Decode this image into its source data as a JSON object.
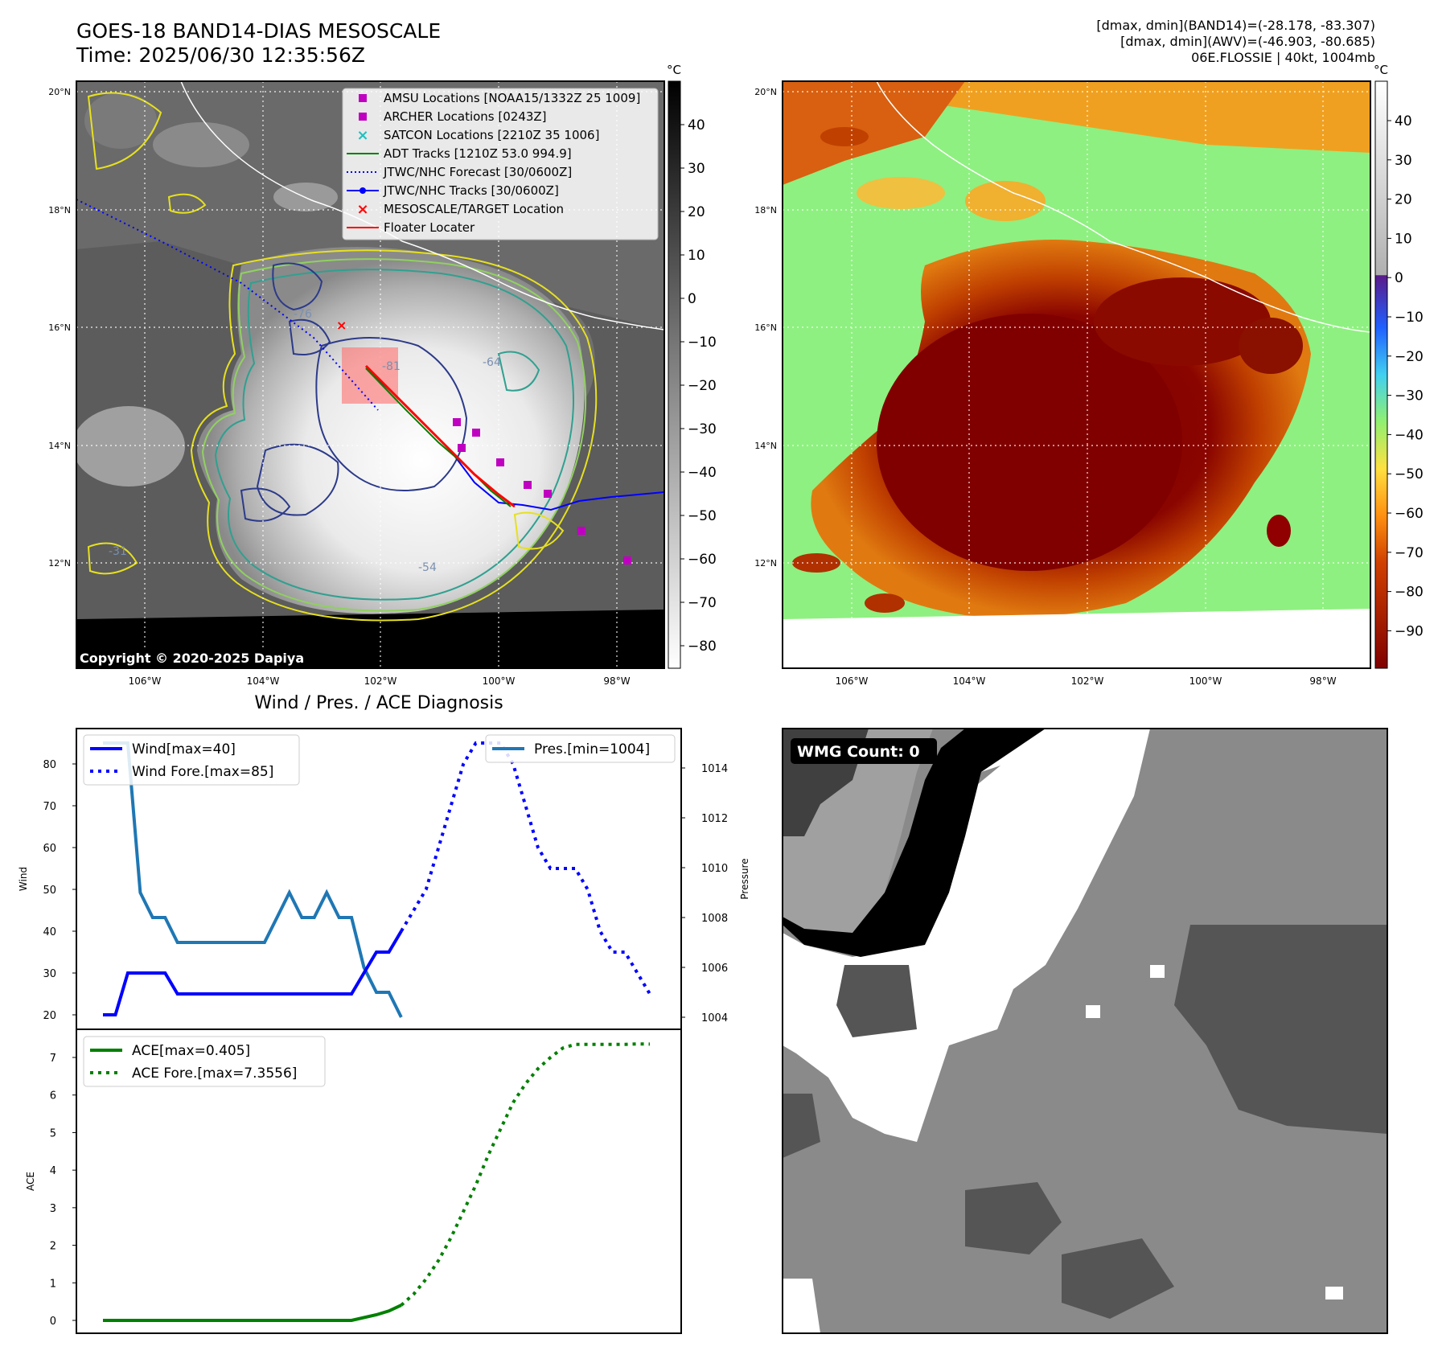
{
  "header": {
    "title_line1": "GOES-18 BAND14-DIAS MESOSCALE",
    "title_line2": "Time: 2025/06/30 12:35:56Z",
    "stats_line1": "[dmax, dmin](BAND14)=(-28.178, -83.307)",
    "stats_line2": "[dmax, dmin](AWV)=(-46.903, -80.685)",
    "stats_line3": "06E.FLOSSIE | 40kt, 1004mb"
  },
  "maps": {
    "lat_ticks": [
      "20°N",
      "18°N",
      "16°N",
      "14°N",
      "12°N"
    ],
    "lon_ticks": [
      "106°W",
      "104°W",
      "102°W",
      "100°W",
      "98°W"
    ],
    "colorbar_unit": "°C",
    "colorbar1_ticks": [
      "40",
      "30",
      "20",
      "10",
      "0",
      "−10",
      "−20",
      "−30",
      "−40",
      "−50",
      "−60",
      "−70",
      "−80"
    ],
    "colorbar2_ticks": [
      "40",
      "30",
      "20",
      "10",
      "0",
      "−10",
      "−20",
      "−30",
      "−40",
      "−50",
      "−60",
      "−70",
      "−80",
      "−90"
    ],
    "copyright": "Copyright © 2020-2025 Dapiya",
    "contour_labels": [
      "-31",
      "-54",
      "-64",
      "-76",
      "-81"
    ],
    "legend": [
      {
        "label": "AMSU Locations [NOAA15/1332Z 25 1009]",
        "marker": "square",
        "color": "#c000c0"
      },
      {
        "label": "ARCHER Locations [0243Z]",
        "marker": "square",
        "color": "#c000c0"
      },
      {
        "label": "SATCON Locations [2210Z 35 1006]",
        "marker": "x",
        "color": "#20c0c0"
      },
      {
        "label": "ADT Tracks [1210Z 53.0 994.9]",
        "marker": "line",
        "color": "#008000"
      },
      {
        "label": "JTWC/NHC Forecast [30/0600Z]",
        "marker": "dotted",
        "color": "#0000ff"
      },
      {
        "label": "JTWC/NHC Tracks [30/0600Z]",
        "marker": "line-dot",
        "color": "#0000ff"
      },
      {
        "label": "MESOSCALE/TARGET Location",
        "marker": "x",
        "color": "#ff0000"
      },
      {
        "label": "Floater Locater",
        "marker": "line",
        "color": "#ff0000"
      }
    ]
  },
  "diagnosis": {
    "title": "Wind / Pres. / ACE Diagnosis",
    "wind_ylabel": "Wind",
    "pres_ylabel": "Pressure",
    "ace_ylabel": "ACE",
    "legend_wind": "Wind[max=40]",
    "legend_wind_fore": "Wind Fore.[max=85]",
    "legend_pres": "Pres.[min=1004]",
    "legend_ace": "ACE[max=0.405]",
    "legend_ace_fore": "ACE Fore.[max=7.3556]",
    "wind_ticks": [
      "80",
      "70",
      "60",
      "50",
      "40",
      "30",
      "20"
    ],
    "pres_ticks": [
      "1014",
      "1012",
      "1010",
      "1008",
      "1006",
      "1004"
    ],
    "ace_ticks": [
      "7",
      "6",
      "5",
      "4",
      "3",
      "2",
      "1",
      "0"
    ]
  },
  "wmg": {
    "label": "WMG Count: 0"
  },
  "chart_data": [
    {
      "type": "line",
      "title": "Wind / Pres. / ACE Diagnosis",
      "ylabel": "Wind",
      "ylim": [
        18,
        86
      ],
      "series": [
        {
          "name": "Wind[max=40]",
          "x": [
            0,
            1,
            2,
            3,
            4,
            5,
            6,
            7,
            8,
            9,
            10,
            11,
            12,
            13,
            14,
            15,
            16,
            17,
            18,
            19,
            20,
            21,
            22,
            23,
            24
          ],
          "y": [
            20,
            20,
            30,
            30,
            30,
            30,
            25,
            25,
            25,
            25,
            25,
            25,
            25,
            25,
            25,
            25,
            25,
            25,
            25,
            25,
            25,
            30,
            35,
            35,
            40
          ]
        },
        {
          "name": "Wind Fore.[max=85]",
          "x": [
            24,
            25,
            26,
            27,
            28,
            29,
            30,
            31,
            32,
            33,
            34,
            35,
            36,
            37,
            38,
            39,
            40,
            41,
            42,
            43,
            44
          ],
          "y": [
            40,
            45,
            50,
            60,
            70,
            80,
            85,
            85,
            85,
            80,
            70,
            60,
            55,
            55,
            55,
            50,
            40,
            35,
            35,
            30,
            25
          ]
        }
      ]
    },
    {
      "type": "line",
      "ylabel": "Pressure",
      "ylim": [
        1003.5,
        1015.5
      ],
      "series": [
        {
          "name": "Pres.[min=1004]",
          "x": [
            0,
            1,
            2,
            3,
            4,
            5,
            6,
            7,
            8,
            9,
            10,
            11,
            12,
            13,
            14,
            15,
            16,
            17,
            18,
            19,
            20,
            21,
            22,
            23,
            24
          ],
          "y": [
            1015,
            1015,
            1015,
            1009,
            1008,
            1008,
            1007,
            1007,
            1007,
            1007,
            1007,
            1007,
            1007,
            1007,
            1008,
            1009,
            1008,
            1008,
            1009,
            1008,
            1008,
            1006,
            1005,
            1005,
            1004
          ]
        }
      ]
    },
    {
      "type": "line",
      "ylabel": "ACE",
      "ylim": [
        -0.35,
        7.75
      ],
      "series": [
        {
          "name": "ACE[max=0.405]",
          "x": [
            0,
            2,
            4,
            6,
            8,
            10,
            12,
            14,
            16,
            18,
            20,
            22,
            23,
            24
          ],
          "y": [
            0,
            0,
            0,
            0,
            0,
            0,
            0,
            0,
            0,
            0,
            0,
            0.15,
            0.25,
            0.405
          ]
        },
        {
          "name": "ACE Fore.[max=7.3556]",
          "x": [
            24,
            25,
            26,
            27,
            28,
            29,
            30,
            31,
            32,
            33,
            34,
            35,
            36,
            37,
            38,
            39,
            40,
            41,
            42,
            43,
            44
          ],
          "y": [
            0.405,
            0.7,
            1.1,
            1.6,
            2.2,
            2.9,
            3.6,
            4.4,
            5.1,
            5.8,
            6.3,
            6.7,
            7.0,
            7.25,
            7.35,
            7.35,
            7.35,
            7.35,
            7.35,
            7.36,
            7.3556
          ]
        }
      ]
    }
  ]
}
